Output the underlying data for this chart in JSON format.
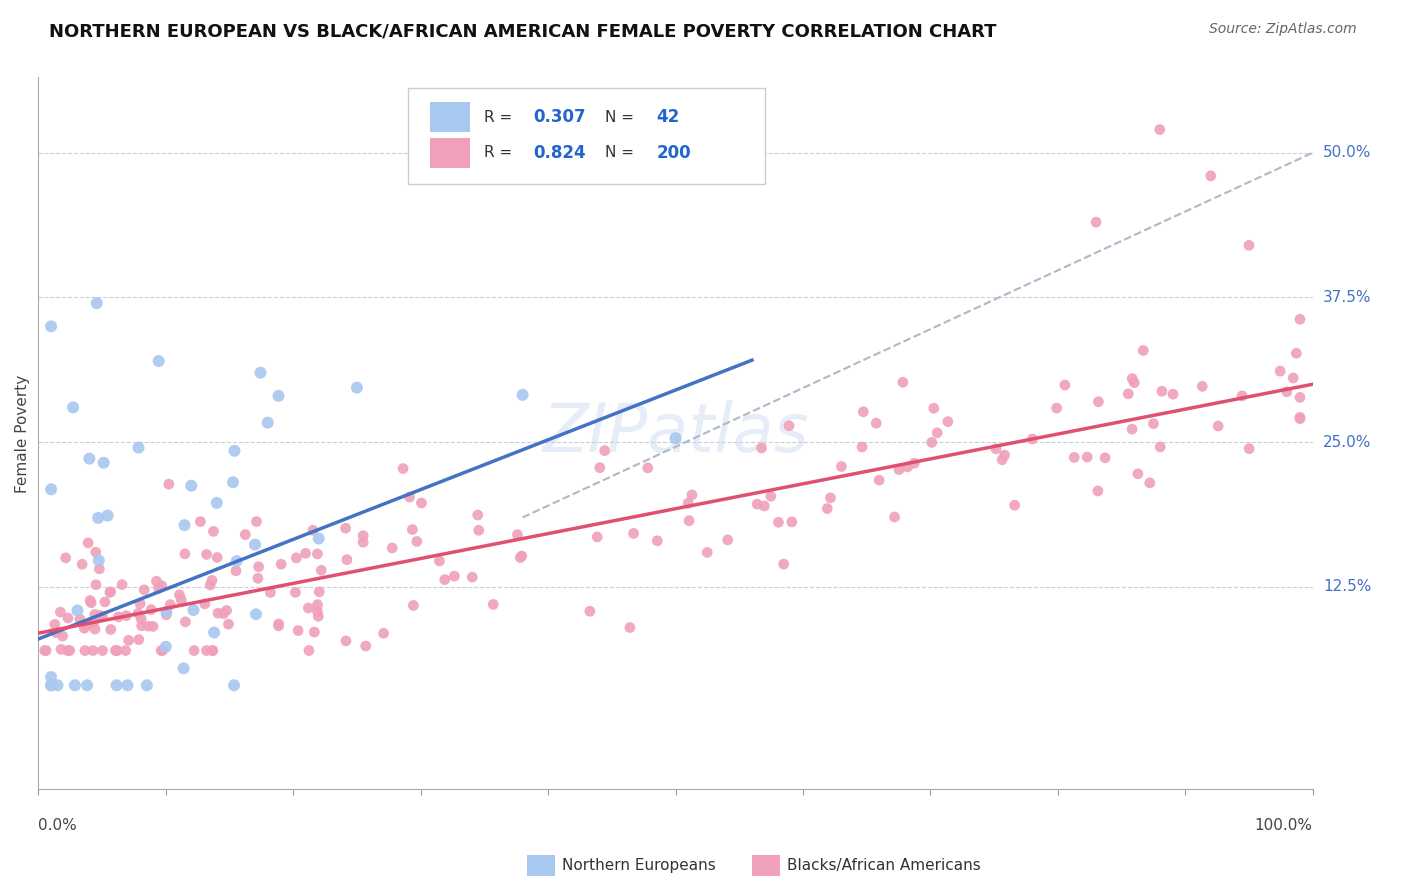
{
  "title": "NORTHERN EUROPEAN VS BLACK/AFRICAN AMERICAN FEMALE POVERTY CORRELATION CHART",
  "source": "Source: ZipAtlas.com",
  "ylabel": "Female Poverty",
  "y_tick_labels": [
    "12.5%",
    "25.0%",
    "37.5%",
    "50.0%"
  ],
  "y_tick_values": [
    0.125,
    0.25,
    0.375,
    0.5
  ],
  "xlim": [
    0.0,
    1.0
  ],
  "ylim": [
    -0.05,
    0.565
  ],
  "color_blue": "#a8c8f0",
  "color_pink": "#f0a0b8",
  "color_blue_line": "#4472c4",
  "color_pink_line": "#e05070",
  "color_dashed": "#b0b8c8",
  "watermark_text": "ZIPatlas",
  "background": "#ffffff",
  "grid_color": "#c8d0d8",
  "title_fontsize": 13,
  "source_fontsize": 10,
  "tick_label_fontsize": 11,
  "ylabel_fontsize": 11
}
